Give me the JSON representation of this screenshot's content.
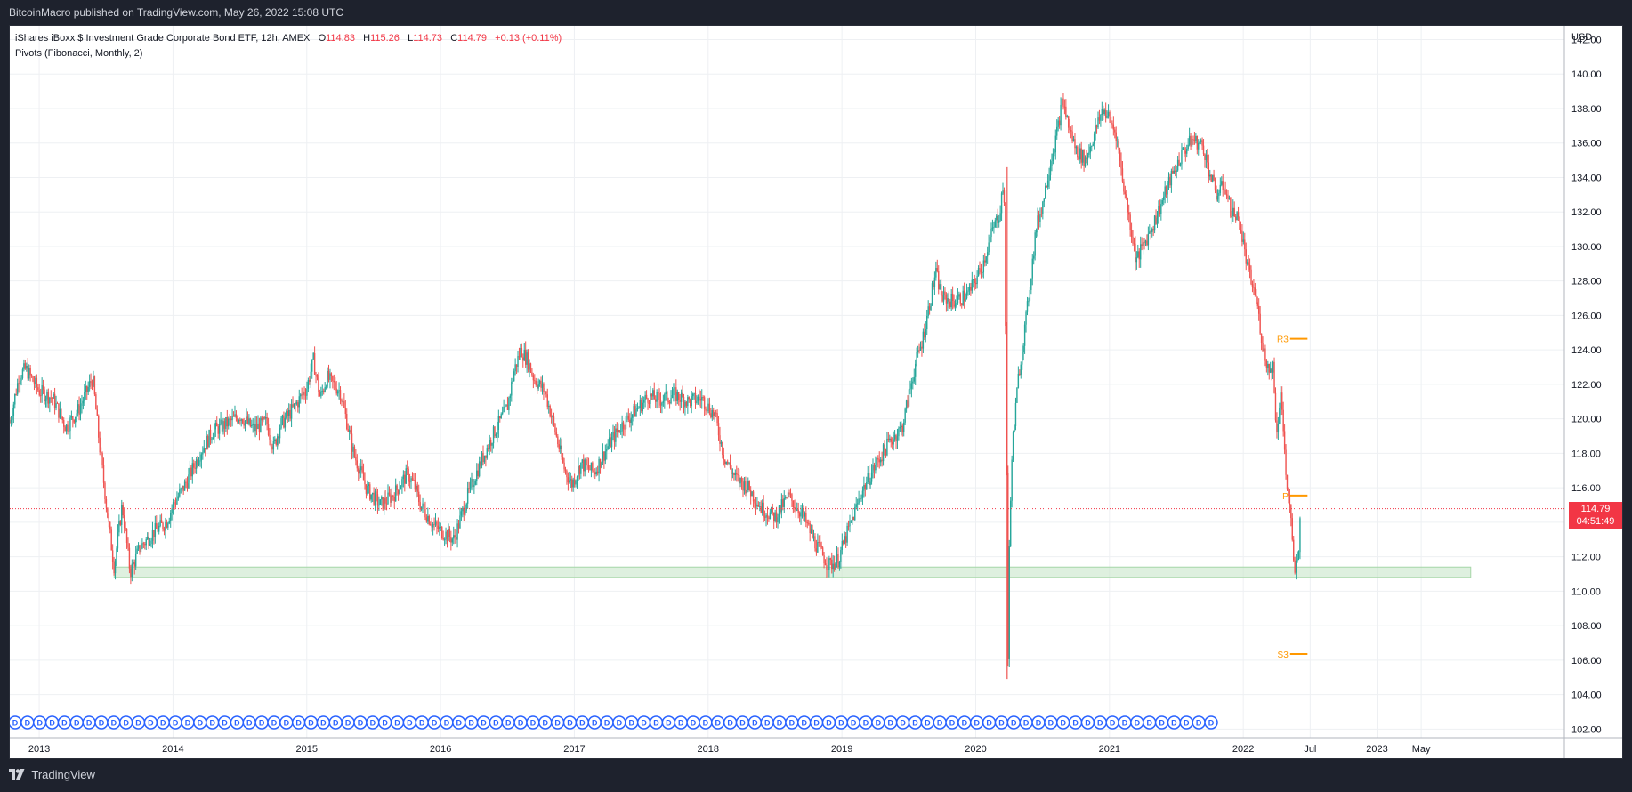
{
  "header": {
    "publisher": "BitcoinMacro published on TradingView.com, May 26, 2022 15:08 UTC"
  },
  "legend": {
    "symbol": "iShares iBoxx $ Investment Grade Corporate Bond ETF, 12h, AMEX",
    "o_label": "O",
    "o_value": "114.83",
    "h_label": "H",
    "h_value": "115.26",
    "l_label": "L",
    "l_value": "114.73",
    "c_label": "C",
    "c_value": "114.79",
    "change": "+0.13 (+0.11%)",
    "indicator": "Pivots (Fibonacci, Monthly, 2)"
  },
  "footer": {
    "brand": "TradingView",
    "logo_icon": "tradingview-logo-icon"
  },
  "price_tag": {
    "price": "114.79",
    "countdown": "04:51:49"
  },
  "chart_data": {
    "type": "candlestick",
    "currency_label": "USD",
    "ylim": [
      101.5,
      142.8
    ],
    "y_ticks": [
      "102.00",
      "104.00",
      "106.00",
      "108.00",
      "110.00",
      "112.00",
      "114.00",
      "116.00",
      "118.00",
      "120.00",
      "122.00",
      "124.00",
      "126.00",
      "128.00",
      "130.00",
      "132.00",
      "134.00",
      "136.00",
      "138.00",
      "140.00",
      "142.00"
    ],
    "xlim": [
      2012.78,
      2024.4
    ],
    "x_ticks": [
      {
        "label": "2013",
        "x": 2013.0
      },
      {
        "label": "2014",
        "x": 2014.0
      },
      {
        "label": "2015",
        "x": 2015.0
      },
      {
        "label": "2016",
        "x": 2016.0
      },
      {
        "label": "2017",
        "x": 2017.0
      },
      {
        "label": "2018",
        "x": 2018.0
      },
      {
        "label": "2019",
        "x": 2019.0
      },
      {
        "label": "2020",
        "x": 2020.0
      },
      {
        "label": "2021",
        "x": 2021.0
      },
      {
        "label": "2022",
        "x": 2022.0
      },
      {
        "label": "Jul",
        "x": 2022.5
      },
      {
        "label": "2023",
        "x": 2023.0
      },
      {
        "label": "May",
        "x": 2023.33
      }
    ],
    "last_price": 114.79,
    "up_color": "#26a69a",
    "down_color": "#ef5350",
    "price_path": [
      [
        2012.78,
        119.8
      ],
      [
        2012.85,
        122.5
      ],
      [
        2012.9,
        122.9
      ],
      [
        2013.0,
        121.6
      ],
      [
        2013.1,
        121.2
      ],
      [
        2013.2,
        119.5
      ],
      [
        2013.3,
        120.6
      ],
      [
        2013.35,
        121.5
      ],
      [
        2013.4,
        122.4
      ],
      [
        2013.45,
        118.5
      ],
      [
        2013.52,
        113.8
      ],
      [
        2013.56,
        111.4
      ],
      [
        2013.62,
        115.0
      ],
      [
        2013.68,
        111.1
      ],
      [
        2013.75,
        112.5
      ],
      [
        2013.85,
        113.4
      ],
      [
        2013.95,
        114.0
      ],
      [
        2014.0,
        115.0
      ],
      [
        2014.1,
        116.3
      ],
      [
        2014.2,
        118.0
      ],
      [
        2014.3,
        119.3
      ],
      [
        2014.4,
        119.7
      ],
      [
        2014.5,
        120.2
      ],
      [
        2014.6,
        119.4
      ],
      [
        2014.7,
        119.8
      ],
      [
        2014.75,
        118.3
      ],
      [
        2014.8,
        119.6
      ],
      [
        2014.9,
        120.6
      ],
      [
        2015.0,
        121.8
      ],
      [
        2015.05,
        123.4
      ],
      [
        2015.1,
        121.2
      ],
      [
        2015.15,
        122.4
      ],
      [
        2015.25,
        121.6
      ],
      [
        2015.35,
        118.0
      ],
      [
        2015.45,
        115.9
      ],
      [
        2015.55,
        115.0
      ],
      [
        2015.65,
        115.6
      ],
      [
        2015.75,
        116.8
      ],
      [
        2015.8,
        116.2
      ],
      [
        2015.85,
        115.0
      ],
      [
        2015.95,
        113.8
      ],
      [
        2016.0,
        113.5
      ],
      [
        2016.1,
        113.0
      ],
      [
        2016.2,
        115.5
      ],
      [
        2016.3,
        117.5
      ],
      [
        2016.4,
        119.2
      ],
      [
        2016.5,
        120.7
      ],
      [
        2016.55,
        122.8
      ],
      [
        2016.6,
        124.0
      ],
      [
        2016.65,
        123.4
      ],
      [
        2016.7,
        122.3
      ],
      [
        2016.78,
        121.6
      ],
      [
        2016.85,
        119.5
      ],
      [
        2016.92,
        117.2
      ],
      [
        2016.98,
        116.2
      ],
      [
        2017.05,
        117.4
      ],
      [
        2017.15,
        116.9
      ],
      [
        2017.25,
        118.4
      ],
      [
        2017.35,
        119.6
      ],
      [
        2017.45,
        120.4
      ],
      [
        2017.55,
        121.3
      ],
      [
        2017.65,
        121.1
      ],
      [
        2017.75,
        121.4
      ],
      [
        2017.85,
        121.0
      ],
      [
        2017.95,
        121.2
      ],
      [
        2018.05,
        120.2
      ],
      [
        2018.12,
        117.8
      ],
      [
        2018.2,
        116.6
      ],
      [
        2018.3,
        116.0
      ],
      [
        2018.4,
        114.8
      ],
      [
        2018.5,
        114.3
      ],
      [
        2018.6,
        115.5
      ],
      [
        2018.7,
        114.5
      ],
      [
        2018.8,
        112.8
      ],
      [
        2018.9,
        111.5
      ],
      [
        2018.97,
        111.8
      ],
      [
        2019.05,
        113.6
      ],
      [
        2019.15,
        115.8
      ],
      [
        2019.25,
        117.3
      ],
      [
        2019.35,
        118.6
      ],
      [
        2019.45,
        119.5
      ],
      [
        2019.55,
        123.2
      ],
      [
        2019.6,
        124.5
      ],
      [
        2019.65,
        126.5
      ],
      [
        2019.7,
        128.5
      ],
      [
        2019.75,
        127.0
      ],
      [
        2019.85,
        126.8
      ],
      [
        2019.95,
        127.3
      ],
      [
        2020.05,
        128.9
      ],
      [
        2020.12,
        130.8
      ],
      [
        2020.18,
        132.0
      ],
      [
        2020.21,
        134.0
      ],
      [
        2020.22,
        127.0
      ],
      [
        2020.23,
        120.0
      ],
      [
        2020.24,
        105.0
      ],
      [
        2020.25,
        112.0
      ],
      [
        2020.27,
        118.0
      ],
      [
        2020.32,
        122.5
      ],
      [
        2020.38,
        126.0
      ],
      [
        2020.45,
        131.0
      ],
      [
        2020.5,
        132.5
      ],
      [
        2020.55,
        134.6
      ],
      [
        2020.6,
        136.3
      ],
      [
        2020.65,
        138.5
      ],
      [
        2020.7,
        136.8
      ],
      [
        2020.75,
        135.6
      ],
      [
        2020.82,
        135.0
      ],
      [
        2020.9,
        136.8
      ],
      [
        2020.95,
        138.0
      ],
      [
        2021.0,
        137.4
      ],
      [
        2021.05,
        136.5
      ],
      [
        2021.1,
        133.8
      ],
      [
        2021.15,
        131.5
      ],
      [
        2021.2,
        129.2
      ],
      [
        2021.28,
        130.5
      ],
      [
        2021.35,
        131.7
      ],
      [
        2021.45,
        133.8
      ],
      [
        2021.55,
        135.5
      ],
      [
        2021.62,
        136.2
      ],
      [
        2021.7,
        135.8
      ],
      [
        2021.75,
        134.2
      ],
      [
        2021.8,
        133.0
      ],
      [
        2021.86,
        133.6
      ],
      [
        2021.9,
        132.2
      ],
      [
        2021.97,
        131.5
      ],
      [
        2022.03,
        128.8
      ],
      [
        2022.1,
        126.8
      ],
      [
        2022.15,
        124.0
      ],
      [
        2022.2,
        122.6
      ],
      [
        2022.22,
        123.4
      ],
      [
        2022.25,
        119.0
      ],
      [
        2022.28,
        121.8
      ],
      [
        2022.32,
        116.5
      ],
      [
        2022.35,
        114.8
      ],
      [
        2022.38,
        111.0
      ],
      [
        2022.41,
        112.0
      ],
      [
        2022.43,
        114.79
      ]
    ],
    "support_zone": {
      "x_start": 2013.56,
      "x_end": 2023.7,
      "y_low": 110.8,
      "y_high": 111.4,
      "color": "#c8e6c9"
    },
    "pivots": [
      {
        "label": "R3",
        "value": 124.65
      },
      {
        "label": "P",
        "value": 115.55
      },
      {
        "label": "S3",
        "value": 106.35
      }
    ],
    "pivot_color": "#ff9800",
    "pivot_x": [
      2022.35,
      2022.48
    ],
    "dividend_marker_label": "D",
    "dividend_marker_count": 98,
    "grid": true
  }
}
